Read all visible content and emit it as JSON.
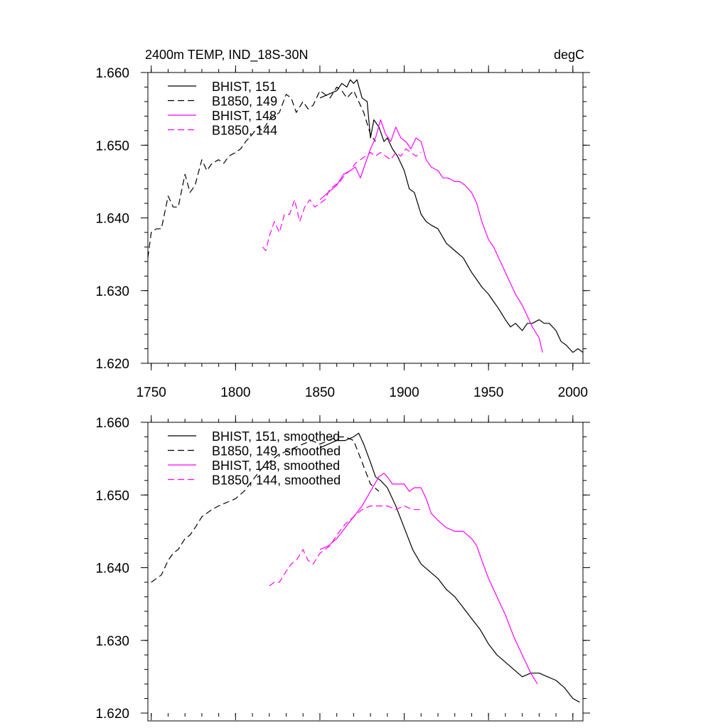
{
  "colors": {
    "black": "#000000",
    "magenta": "#ff00ff",
    "background": "#ffffff"
  },
  "chart_data": [
    {
      "type": "line",
      "title": "2400m TEMP, IND_18S-30N",
      "units": "degC",
      "xlim": [
        1748,
        2006
      ],
      "ylim": [
        1.62,
        1.66
      ],
      "x_ticks": [
        "1750",
        "1800",
        "1850",
        "1900",
        "1950",
        "2000"
      ],
      "y_ticks": [
        "1.620",
        "1.630",
        "1.640",
        "1.650",
        "1.660"
      ],
      "legend_position": "top-left",
      "series": [
        {
          "name": "BHIST, 151",
          "color": "#000000",
          "dash": false,
          "x": [
            1850,
            1855,
            1860,
            1863,
            1866,
            1868,
            1870,
            1872,
            1875,
            1878,
            1880,
            1882,
            1885,
            1888,
            1890,
            1893,
            1896,
            1900,
            1903,
            1906,
            1910,
            1913,
            1916,
            1920,
            1925,
            1930,
            1935,
            1940,
            1943,
            1946,
            1950,
            1953,
            1956,
            1960,
            1963,
            1966,
            1970,
            1973,
            1976,
            1980,
            1983,
            1986,
            1990,
            1993,
            1996,
            2000,
            2003,
            2006
          ],
          "y": [
            1.6565,
            1.657,
            1.6575,
            1.6585,
            1.658,
            1.659,
            1.6585,
            1.659,
            1.6565,
            1.656,
            1.651,
            1.6535,
            1.6525,
            1.6505,
            1.651,
            1.6495,
            1.6485,
            1.6465,
            1.644,
            1.6435,
            1.6405,
            1.6395,
            1.639,
            1.6385,
            1.6365,
            1.6355,
            1.6345,
            1.6325,
            1.6315,
            1.6305,
            1.6295,
            1.6285,
            1.6275,
            1.626,
            1.625,
            1.6255,
            1.6245,
            1.6255,
            1.6255,
            1.626,
            1.6255,
            1.6255,
            1.6245,
            1.623,
            1.6225,
            1.6215,
            1.622,
            1.6215
          ]
        },
        {
          "name": "B1850, 149",
          "color": "#000000",
          "dash": true,
          "x": [
            1748,
            1750,
            1753,
            1756,
            1760,
            1763,
            1766,
            1770,
            1773,
            1776,
            1780,
            1783,
            1786,
            1790,
            1793,
            1796,
            1800,
            1803,
            1806,
            1810,
            1813,
            1816,
            1820,
            1823,
            1826,
            1830,
            1833,
            1836,
            1840,
            1843,
            1846,
            1850,
            1853,
            1856,
            1860,
            1863,
            1866,
            1870,
            1873,
            1876,
            1880,
            1883
          ],
          "y": [
            1.6345,
            1.638,
            1.6385,
            1.6385,
            1.643,
            1.6415,
            1.6415,
            1.646,
            1.6435,
            1.6445,
            1.648,
            1.6465,
            1.6475,
            1.648,
            1.6475,
            1.6485,
            1.649,
            1.6495,
            1.6505,
            1.6515,
            1.6525,
            1.652,
            1.6535,
            1.654,
            1.6545,
            1.657,
            1.6565,
            1.6545,
            1.656,
            1.655,
            1.6555,
            1.6575,
            1.657,
            1.6565,
            1.658,
            1.6575,
            1.6565,
            1.6575,
            1.656,
            1.6545,
            1.6515,
            1.6505
          ]
        },
        {
          "name": "BHIST, 148",
          "color": "#ff00ff",
          "dash": false,
          "x": [
            1850,
            1855,
            1860,
            1864,
            1868,
            1871,
            1874,
            1877,
            1880,
            1883,
            1886,
            1889,
            1892,
            1895,
            1898,
            1901,
            1904,
            1907,
            1910,
            1913,
            1916,
            1920,
            1923,
            1926,
            1930,
            1933,
            1936,
            1940,
            1943,
            1946,
            1950,
            1953,
            1956,
            1960,
            1963,
            1966,
            1970,
            1973,
            1976,
            1980,
            1982
          ],
          "y": [
            1.6425,
            1.6435,
            1.6445,
            1.646,
            1.6465,
            1.647,
            1.6455,
            1.6475,
            1.6495,
            1.651,
            1.6535,
            1.6515,
            1.6505,
            1.6525,
            1.651,
            1.6505,
            1.6495,
            1.651,
            1.6505,
            1.648,
            1.647,
            1.6465,
            1.6455,
            1.6455,
            1.645,
            1.645,
            1.6445,
            1.6435,
            1.642,
            1.6395,
            1.637,
            1.636,
            1.6345,
            1.6325,
            1.631,
            1.6295,
            1.628,
            1.6265,
            1.625,
            1.6235,
            1.6215
          ]
        },
        {
          "name": "B1850, 144",
          "color": "#ff00ff",
          "dash": true,
          "x": [
            1816,
            1818,
            1820,
            1823,
            1826,
            1829,
            1832,
            1835,
            1838,
            1841,
            1844,
            1847,
            1850,
            1853,
            1856,
            1859,
            1862,
            1865,
            1868,
            1871,
            1874,
            1877,
            1880,
            1883,
            1886,
            1889,
            1892,
            1895,
            1898,
            1901,
            1904,
            1907,
            1910
          ],
          "y": [
            1.636,
            1.6355,
            1.6375,
            1.6395,
            1.638,
            1.6405,
            1.6405,
            1.6425,
            1.6395,
            1.6415,
            1.6425,
            1.6415,
            1.642,
            1.6425,
            1.644,
            1.6445,
            1.645,
            1.646,
            1.6465,
            1.6475,
            1.648,
            1.6485,
            1.649,
            1.6485,
            1.649,
            1.6485,
            1.648,
            1.649,
            1.6485,
            1.6495,
            1.649,
            1.6485,
            1.649
          ]
        }
      ]
    },
    {
      "type": "line",
      "xlim": [
        1748,
        2006
      ],
      "ylim": [
        1.62,
        1.66
      ],
      "y_ticks": [
        "1.620",
        "1.630",
        "1.640",
        "1.650",
        "1.660"
      ],
      "legend_position": "top-left",
      "series": [
        {
          "name": "BHIST, 151, smoothed",
          "color": "#000000",
          "dash": false,
          "x": [
            1850,
            1855,
            1860,
            1865,
            1870,
            1873,
            1876,
            1880,
            1883,
            1886,
            1890,
            1895,
            1900,
            1905,
            1910,
            1915,
            1920,
            1925,
            1930,
            1935,
            1940,
            1945,
            1950,
            1955,
            1960,
            1965,
            1970,
            1975,
            1980,
            1985,
            1990,
            1995,
            2000,
            2004
          ],
          "y": [
            1.6565,
            1.657,
            1.6575,
            1.6575,
            1.658,
            1.6585,
            1.657,
            1.6545,
            1.6525,
            1.652,
            1.651,
            1.6485,
            1.6455,
            1.6425,
            1.6405,
            1.6395,
            1.6385,
            1.637,
            1.636,
            1.6345,
            1.633,
            1.6315,
            1.6295,
            1.628,
            1.627,
            1.626,
            1.625,
            1.6255,
            1.6255,
            1.625,
            1.6245,
            1.6235,
            1.622,
            1.6215
          ]
        },
        {
          "name": "B1850, 149, smoothed",
          "color": "#000000",
          "dash": true,
          "x": [
            1750,
            1753,
            1756,
            1760,
            1763,
            1766,
            1770,
            1773,
            1776,
            1780,
            1783,
            1786,
            1790,
            1795,
            1800,
            1805,
            1810,
            1815,
            1820,
            1825,
            1830,
            1835,
            1840,
            1845,
            1850,
            1855,
            1860,
            1865,
            1870,
            1875,
            1880,
            1885
          ],
          "y": [
            1.638,
            1.6385,
            1.639,
            1.641,
            1.642,
            1.6425,
            1.644,
            1.6445,
            1.6455,
            1.647,
            1.6475,
            1.648,
            1.6485,
            1.649,
            1.6495,
            1.6505,
            1.652,
            1.6535,
            1.6545,
            1.6555,
            1.656,
            1.6565,
            1.657,
            1.6575,
            1.657,
            1.6575,
            1.658,
            1.658,
            1.6575,
            1.6545,
            1.6515,
            1.6505
          ]
        },
        {
          "name": "BHIST, 148, smoothed",
          "color": "#ff00ff",
          "dash": false,
          "x": [
            1850,
            1855,
            1860,
            1865,
            1870,
            1875,
            1880,
            1885,
            1888,
            1890,
            1893,
            1896,
            1900,
            1903,
            1906,
            1910,
            1913,
            1916,
            1920,
            1925,
            1930,
            1935,
            1940,
            1943,
            1946,
            1950,
            1955,
            1960,
            1965,
            1970,
            1975,
            1979
          ],
          "y": [
            1.6425,
            1.643,
            1.644,
            1.6455,
            1.647,
            1.6485,
            1.6505,
            1.6525,
            1.653,
            1.6525,
            1.6515,
            1.6515,
            1.6515,
            1.6505,
            1.651,
            1.651,
            1.6495,
            1.6475,
            1.6465,
            1.6455,
            1.645,
            1.645,
            1.644,
            1.643,
            1.641,
            1.6385,
            1.636,
            1.6335,
            1.6305,
            1.628,
            1.6255,
            1.624
          ]
        },
        {
          "name": "B1850, 144, smoothed",
          "color": "#ff00ff",
          "dash": true,
          "x": [
            1820,
            1823,
            1826,
            1830,
            1833,
            1836,
            1840,
            1843,
            1846,
            1850,
            1853,
            1856,
            1860,
            1865,
            1870,
            1875,
            1880,
            1885,
            1890,
            1895,
            1900,
            1905,
            1910
          ],
          "y": [
            1.6375,
            1.638,
            1.638,
            1.6395,
            1.6405,
            1.641,
            1.6425,
            1.641,
            1.6405,
            1.642,
            1.6425,
            1.643,
            1.6445,
            1.646,
            1.647,
            1.648,
            1.6485,
            1.6485,
            1.6485,
            1.648,
            1.6485,
            1.648,
            1.648
          ]
        }
      ]
    }
  ]
}
